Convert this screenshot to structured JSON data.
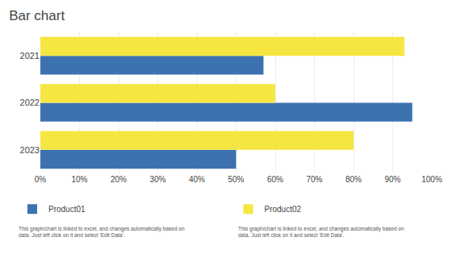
{
  "chart_data": {
    "type": "bar",
    "orientation": "horizontal",
    "title": "Bar chart",
    "categories": [
      "2023",
      "2022",
      "2021"
    ],
    "series": [
      {
        "name": "Product01",
        "color": "#3D72B0",
        "values": [
          0.5,
          0.95,
          0.57
        ]
      },
      {
        "name": "Product02",
        "color": "#F5E642",
        "values": [
          0.8,
          0.6,
          0.93
        ]
      }
    ],
    "xlim": [
      0,
      1.0
    ],
    "xticks": [
      {
        "value": 0,
        "label": "0%"
      },
      {
        "value": 0.1,
        "label": "10%"
      },
      {
        "value": 0.2,
        "label": "20%"
      },
      {
        "value": 0.3,
        "label": "30%"
      },
      {
        "value": 0.4,
        "label": "40%"
      },
      {
        "value": 0.5,
        "label": "50%"
      },
      {
        "value": 0.6,
        "label": "60%"
      },
      {
        "value": 0.7,
        "label": "70%"
      },
      {
        "value": 0.8,
        "label": "80%"
      },
      {
        "value": 0.9,
        "label": "90%"
      },
      {
        "value": 1.0,
        "label": "100%"
      }
    ],
    "grid": true,
    "legend": "bottom",
    "annotations": [
      "This graph/chart is linked to excel, and changes automatically based on\ndata. Just left click on it and select 'Edit Data'.",
      "This graph/chart is linked to excel, and changes automatically based on\ndata. Just left click on it and select 'Edit Data'."
    ]
  }
}
